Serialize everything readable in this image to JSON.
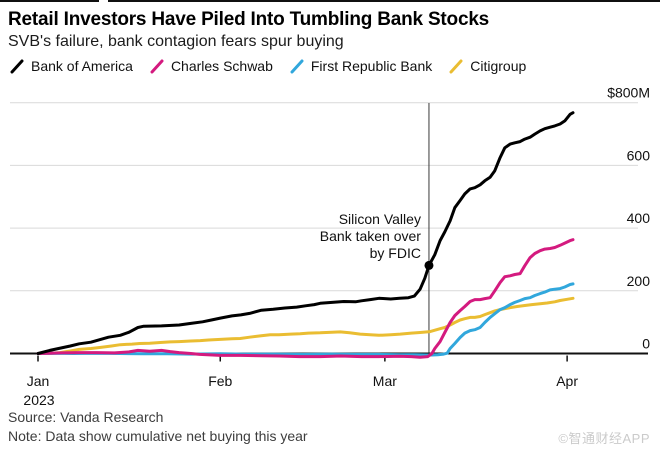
{
  "header": {
    "title": "Retail Investors Have Piled Into Tumbling Bank Stocks",
    "subtitle": "SVB's failure, bank contagion fears spur buying"
  },
  "footer": {
    "source": "Source: Vanda Research",
    "note": "Note: Data show cumulative net buying this year"
  },
  "watermark": "©智通财经APP",
  "chart_data": {
    "type": "line",
    "title": "Retail Investors Have Piled Into Tumbling Bank Stocks",
    "subtitle": "SVB's failure, bank contagion fears spur buying",
    "unit": "USD millions, cumulative net buying this year",
    "x_axis": {
      "note": "t = days since Jan 1 2023",
      "range": [
        0,
        91
      ],
      "ticks": [
        {
          "t": 0,
          "label": "Jan",
          "sublabel": "2023"
        },
        {
          "t": 31,
          "label": "Feb"
        },
        {
          "t": 59,
          "label": "Mar"
        },
        {
          "t": 90,
          "label": "Apr"
        }
      ]
    },
    "y_axis": {
      "position": "right",
      "range": [
        -15,
        800
      ],
      "grid": true,
      "ticks": [
        {
          "v": 800,
          "label": "$800M"
        },
        {
          "v": 600,
          "label": "600"
        },
        {
          "v": 400,
          "label": "400"
        },
        {
          "v": 200,
          "label": "200"
        },
        {
          "v": 0,
          "label": "0"
        }
      ]
    },
    "annotation": {
      "lines": [
        "Silicon Valley",
        "Bank taken over",
        "by FDIC"
      ],
      "t": 66.5,
      "v": 281
    },
    "style": {
      "grid_color": "#d9d9d9",
      "axis_color": "#111111",
      "event_line_color": "#3a3a3a",
      "text_color": "#111111"
    },
    "series": [
      {
        "name": "Citigroup",
        "color": "#eabd32",
        "points": [
          [
            0,
            0
          ],
          [
            2,
            1
          ],
          [
            3.7,
            3
          ],
          [
            5.5,
            8
          ],
          [
            7,
            13
          ],
          [
            9,
            16
          ],
          [
            10.5,
            19
          ],
          [
            12.5,
            24
          ],
          [
            14,
            28
          ],
          [
            16,
            30
          ],
          [
            17.3,
            32
          ],
          [
            19,
            33
          ],
          [
            20.8,
            35
          ],
          [
            22.5,
            37
          ],
          [
            24,
            38
          ],
          [
            26,
            40
          ],
          [
            27.6,
            41
          ],
          [
            29,
            43
          ],
          [
            31,
            45
          ],
          [
            33,
            47
          ],
          [
            34.4,
            48
          ],
          [
            36,
            52
          ],
          [
            37.8,
            56
          ],
          [
            39.5,
            60
          ],
          [
            41,
            60
          ],
          [
            43,
            62
          ],
          [
            44.6,
            63
          ],
          [
            46,
            65
          ],
          [
            48,
            66
          ],
          [
            50,
            68
          ],
          [
            51.4,
            69
          ],
          [
            53,
            66
          ],
          [
            54.8,
            62
          ],
          [
            56.5,
            60
          ],
          [
            58,
            58
          ],
          [
            60,
            60
          ],
          [
            61.6,
            62
          ],
          [
            63.5,
            65
          ],
          [
            65,
            67
          ],
          [
            66.7,
            70
          ],
          [
            68.4,
            79
          ],
          [
            69.2,
            83
          ],
          [
            70.1,
            91
          ],
          [
            70.9,
            99
          ],
          [
            71.8,
            107
          ],
          [
            72.6,
            111
          ],
          [
            73.5,
            115
          ],
          [
            74.3,
            115
          ],
          [
            75.2,
            118
          ],
          [
            76,
            124
          ],
          [
            76.9,
            130
          ],
          [
            77.7,
            136
          ],
          [
            78.6,
            140
          ],
          [
            79.4,
            143
          ],
          [
            80.3,
            146
          ],
          [
            81.5,
            150
          ],
          [
            82.8,
            153
          ],
          [
            84,
            156
          ],
          [
            85.4,
            159
          ],
          [
            86.6,
            161
          ],
          [
            87.9,
            165
          ],
          [
            88.8,
            169
          ],
          [
            90,
            173
          ],
          [
            91,
            176
          ]
        ]
      },
      {
        "name": "First Republic Bank",
        "color": "#31a7dc",
        "points": [
          [
            0,
            0
          ],
          [
            3,
            1
          ],
          [
            6,
            0
          ],
          [
            10,
            1
          ],
          [
            14,
            0
          ],
          [
            18,
            -1
          ],
          [
            22,
            -1
          ],
          [
            26,
            -2
          ],
          [
            31,
            -1
          ],
          [
            35,
            -2
          ],
          [
            40,
            -2
          ],
          [
            45,
            -3
          ],
          [
            50,
            -2
          ],
          [
            54,
            -3
          ],
          [
            58,
            -3
          ],
          [
            61.5,
            -4
          ],
          [
            64,
            -4
          ],
          [
            66.5,
            -5
          ],
          [
            68,
            -4
          ],
          [
            69,
            -2
          ],
          [
            69.6,
            1
          ],
          [
            70.1,
            16
          ],
          [
            70.9,
            32
          ],
          [
            71.8,
            51
          ],
          [
            72.6,
            65
          ],
          [
            73.5,
            73
          ],
          [
            74.3,
            76
          ],
          [
            75.2,
            83
          ],
          [
            76,
            99
          ],
          [
            76.9,
            115
          ],
          [
            77.7,
            127
          ],
          [
            78.6,
            140
          ],
          [
            79.4,
            146
          ],
          [
            80.3,
            156
          ],
          [
            81.1,
            163
          ],
          [
            82,
            169
          ],
          [
            82.8,
            175
          ],
          [
            83.7,
            178
          ],
          [
            84.5,
            185
          ],
          [
            85.4,
            191
          ],
          [
            86.2,
            196
          ],
          [
            87.1,
            203
          ],
          [
            87.9,
            205
          ],
          [
            88.8,
            207
          ],
          [
            89.6,
            212
          ],
          [
            90.5,
            220
          ],
          [
            91,
            222
          ]
        ]
      },
      {
        "name": "Charles Schwab",
        "color": "#d41a7f",
        "points": [
          [
            0,
            0
          ],
          [
            2,
            1
          ],
          [
            4,
            2
          ],
          [
            7,
            3
          ],
          [
            10,
            3
          ],
          [
            13,
            2
          ],
          [
            15.5,
            5
          ],
          [
            17,
            10
          ],
          [
            19,
            7
          ],
          [
            21,
            10
          ],
          [
            22.5,
            6
          ],
          [
            24,
            3
          ],
          [
            26,
            0
          ],
          [
            27.5,
            -3
          ],
          [
            31,
            -6
          ],
          [
            34.5,
            -6
          ],
          [
            38,
            -7
          ],
          [
            41,
            -8
          ],
          [
            44.5,
            -10
          ],
          [
            48,
            -10
          ],
          [
            51.5,
            -8
          ],
          [
            55,
            -10
          ],
          [
            58,
            -10
          ],
          [
            61.5,
            -9
          ],
          [
            63.5,
            -10
          ],
          [
            65,
            -12
          ],
          [
            66.3,
            -10
          ],
          [
            67,
            0
          ],
          [
            67.5,
            16
          ],
          [
            68.4,
            38
          ],
          [
            69.2,
            67
          ],
          [
            70.1,
            99
          ],
          [
            70.9,
            121
          ],
          [
            71.8,
            137
          ],
          [
            72.6,
            150
          ],
          [
            73.5,
            166
          ],
          [
            74.3,
            172
          ],
          [
            75.2,
            172
          ],
          [
            76,
            175
          ],
          [
            76.9,
            178
          ],
          [
            77.7,
            200
          ],
          [
            78.6,
            226
          ],
          [
            79.4,
            245
          ],
          [
            80.3,
            248
          ],
          [
            81.1,
            252
          ],
          [
            82,
            255
          ],
          [
            82.8,
            280
          ],
          [
            83.7,
            306
          ],
          [
            84.5,
            319
          ],
          [
            85.4,
            328
          ],
          [
            86.2,
            333
          ],
          [
            87.1,
            335
          ],
          [
            87.9,
            338
          ],
          [
            88.8,
            345
          ],
          [
            89.6,
            352
          ],
          [
            90.5,
            360
          ],
          [
            91,
            363
          ]
        ]
      },
      {
        "name": "Bank of America",
        "color": "#000000",
        "points": [
          [
            0,
            0
          ],
          [
            2,
            10
          ],
          [
            4,
            18
          ],
          [
            5.5,
            24
          ],
          [
            7,
            31
          ],
          [
            9,
            36
          ],
          [
            10.5,
            44
          ],
          [
            12,
            52
          ],
          [
            14,
            58
          ],
          [
            15.5,
            68
          ],
          [
            17,
            83
          ],
          [
            18,
            87
          ],
          [
            21,
            88
          ],
          [
            24,
            91
          ],
          [
            26,
            96
          ],
          [
            28,
            101
          ],
          [
            29.5,
            107
          ],
          [
            31,
            113
          ],
          [
            33,
            120
          ],
          [
            34.5,
            123
          ],
          [
            36,
            128
          ],
          [
            38,
            138
          ],
          [
            40,
            141
          ],
          [
            42,
            145
          ],
          [
            44,
            148
          ],
          [
            45.5,
            152
          ],
          [
            47,
            156
          ],
          [
            48,
            160
          ],
          [
            50,
            163
          ],
          [
            52,
            166
          ],
          [
            54,
            165
          ],
          [
            55,
            168
          ],
          [
            56.5,
            172
          ],
          [
            58,
            176
          ],
          [
            60,
            174
          ],
          [
            61.5,
            176
          ],
          [
            63,
            178
          ],
          [
            64,
            183
          ],
          [
            65,
            205
          ],
          [
            65.8,
            240
          ],
          [
            66.5,
            281
          ],
          [
            67.5,
            315
          ],
          [
            68.4,
            360
          ],
          [
            69.2,
            388
          ],
          [
            70.1,
            423
          ],
          [
            70.9,
            465
          ],
          [
            71.8,
            488
          ],
          [
            72.6,
            509
          ],
          [
            73.5,
            525
          ],
          [
            74.3,
            529
          ],
          [
            75.2,
            538
          ],
          [
            76,
            551
          ],
          [
            76.9,
            562
          ],
          [
            77.7,
            583
          ],
          [
            78.6,
            625
          ],
          [
            79.4,
            656
          ],
          [
            80.3,
            668
          ],
          [
            81.1,
            672
          ],
          [
            82,
            676
          ],
          [
            82.8,
            684
          ],
          [
            83.7,
            690
          ],
          [
            84.5,
            700
          ],
          [
            85.4,
            710
          ],
          [
            86.2,
            717
          ],
          [
            87.1,
            722
          ],
          [
            87.9,
            726
          ],
          [
            88.8,
            732
          ],
          [
            89.6,
            742
          ],
          [
            90.5,
            763
          ],
          [
            91,
            768
          ]
        ]
      }
    ],
    "legend_order": [
      "Bank of America",
      "Charles Schwab",
      "First Republic Bank",
      "Citigroup"
    ]
  }
}
